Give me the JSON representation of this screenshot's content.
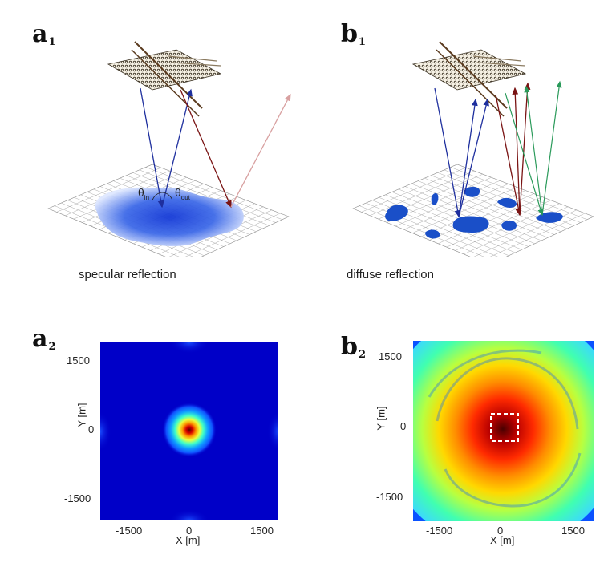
{
  "panels": {
    "a1": {
      "letter": "a",
      "sub": "1",
      "caption": "specular reflection",
      "theta_in": "θ",
      "theta_in_sub": "in",
      "theta_out": "θ",
      "theta_out_sub": "out"
    },
    "b1": {
      "letter": "b",
      "sub": "1",
      "caption": "diffuse reflection"
    },
    "a2": {
      "letter": "a",
      "sub": "2",
      "xlabel": "X [m]",
      "ylabel": "Y [m]",
      "xticks": [
        "-1500",
        "0",
        "1500"
      ],
      "yticks": [
        "1500",
        "0",
        "-1500"
      ]
    },
    "b2": {
      "letter": "b",
      "sub": "2",
      "xlabel": "X [m]",
      "ylabel": "Y [m]",
      "xticks": [
        "-1500",
        "0",
        "1500"
      ],
      "yticks": [
        "1500",
        "0",
        "-1500"
      ]
    }
  },
  "colors": {
    "incident": "#1e2f9e",
    "reflected": "#7a1414",
    "faded": "#d8a0a0",
    "diffuse": "#2a9a5a",
    "blob": "#1a4fc8"
  }
}
